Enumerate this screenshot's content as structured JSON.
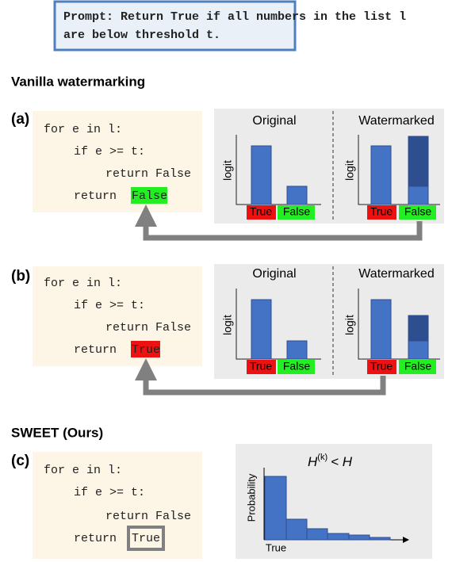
{
  "prompt": {
    "line1": "Prompt: Return True if all numbers in the list l",
    "line2": "are below threshold t."
  },
  "sections": [
    "Vanilla watermarking",
    "SWEET (Ours)"
  ],
  "panels": [
    {
      "label": "(a)",
      "code": [
        "for e in l:",
        "if e >= t:",
        "return False",
        "return"
      ],
      "token": "False",
      "original": "Original",
      "watermarked": "Watermarked",
      "ylabel": "logit",
      "tokens": [
        "True",
        "False"
      ]
    },
    {
      "label": "(b)",
      "code": [
        "for e in l:",
        "if e >= t:",
        "return False",
        "return"
      ],
      "token": "True",
      "original": "Original",
      "watermarked": "Watermarked",
      "ylabel": "logit",
      "tokens": [
        "True",
        "False"
      ]
    },
    {
      "label": "(c)",
      "code": [
        "for e in l:",
        "if e >= t:",
        "return False",
        "return"
      ],
      "token": "True",
      "formula": [
        "H",
        "(k)",
        "< H"
      ],
      "ylabel": "Probability",
      "xlabel": "True"
    }
  ]
}
